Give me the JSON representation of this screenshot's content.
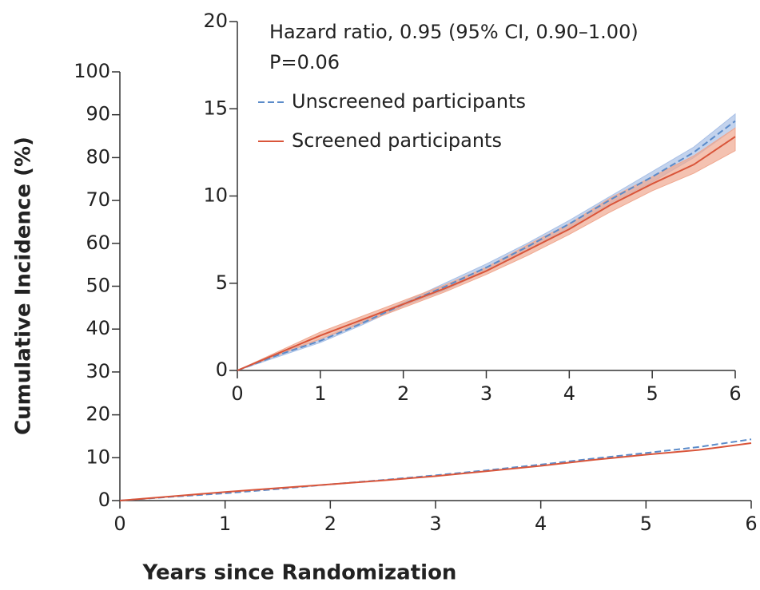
{
  "chart_data": [
    {
      "type": "line",
      "xlabel": "Years since Randomization",
      "ylabel": "Cumulative Incidence (%)",
      "x": [
        0,
        0.5,
        1,
        1.5,
        2,
        2.5,
        3,
        3.5,
        4,
        4.5,
        5,
        5.5,
        6
      ],
      "xlim": [
        0,
        6
      ],
      "xticks": [
        0,
        1,
        2,
        3,
        4,
        5,
        6
      ],
      "ylim": [
        0,
        100
      ],
      "yticks": [
        0,
        10,
        20,
        30,
        40,
        50,
        60,
        70,
        80,
        90,
        100
      ],
      "series": [
        {
          "color": "#5b8bc9",
          "linestyle": "dashed",
          "values": [
            0,
            0.9,
            1.7,
            2.7,
            3.8,
            4.8,
            5.9,
            7.1,
            8.4,
            9.8,
            11.1,
            12.5,
            14.3
          ]
        },
        {
          "color": "#d9553a",
          "linestyle": "solid",
          "values": [
            0,
            1.0,
            2.0,
            2.9,
            3.8,
            4.7,
            5.7,
            6.9,
            8.1,
            9.5,
            10.7,
            11.8,
            13.4
          ]
        }
      ]
    },
    {
      "type": "line",
      "annotations": [
        "Hazard ratio, 0.95 (95% CI, 0.90–1.00)",
        "P=0.06"
      ],
      "x": [
        0,
        0.5,
        1,
        1.5,
        2,
        2.5,
        3,
        3.5,
        4,
        4.5,
        5,
        5.5,
        6
      ],
      "xlim": [
        0,
        6
      ],
      "xticks": [
        0,
        1,
        2,
        3,
        4,
        5,
        6
      ],
      "ylim": [
        0,
        20
      ],
      "yticks": [
        0,
        5,
        10,
        15,
        20
      ],
      "series": [
        {
          "name": "Unscreened participants",
          "color": "#5b8bc9",
          "band_color": "#a9c0e6",
          "linestyle": "dashed",
          "values": [
            0,
            0.9,
            1.7,
            2.7,
            3.8,
            4.8,
            5.9,
            7.1,
            8.4,
            9.8,
            11.1,
            12.5,
            14.3
          ],
          "lower": [
            0,
            0.8,
            1.6,
            2.6,
            3.7,
            4.6,
            5.7,
            6.9,
            8.2,
            9.6,
            10.8,
            12.2,
            13.9
          ],
          "upper": [
            0,
            1.0,
            1.8,
            2.8,
            3.9,
            5.0,
            6.1,
            7.3,
            8.6,
            10.0,
            11.4,
            12.8,
            14.7
          ]
        },
        {
          "name": "Screened participants",
          "color": "#d9553a",
          "band_color": "#f0a890",
          "linestyle": "solid",
          "values": [
            0,
            1.0,
            2.0,
            2.9,
            3.8,
            4.7,
            5.7,
            6.9,
            8.1,
            9.5,
            10.7,
            11.8,
            13.4
          ],
          "lower": [
            0,
            0.9,
            1.8,
            2.7,
            3.6,
            4.5,
            5.5,
            6.6,
            7.8,
            9.1,
            10.3,
            11.3,
            12.6
          ],
          "upper": [
            0,
            1.1,
            2.2,
            3.1,
            4.0,
            4.9,
            5.9,
            7.2,
            8.4,
            9.9,
            11.1,
            12.3,
            13.9
          ]
        }
      ]
    }
  ]
}
